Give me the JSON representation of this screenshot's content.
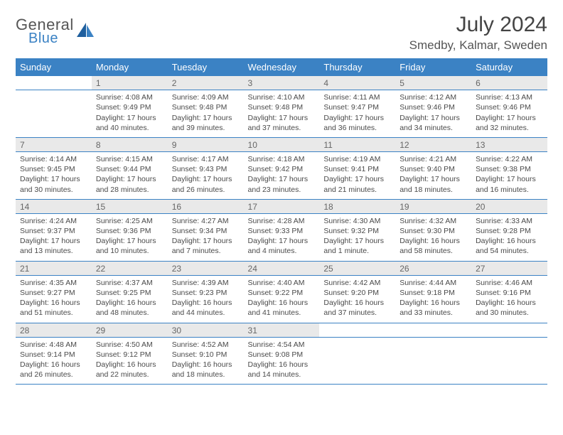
{
  "brand": {
    "word1": "General",
    "word2": "Blue",
    "accent_color": "#3b82c4"
  },
  "title": "July 2024",
  "location": "Smedby, Kalmar, Sweden",
  "colors": {
    "header_bg": "#3b82c4",
    "header_text": "#ffffff",
    "daynum_bg": "#e9e9e9",
    "daynum_text": "#666666",
    "body_text": "#4a4a4a",
    "divider": "#3b82c4",
    "page_bg": "#ffffff"
  },
  "day_names": [
    "Sunday",
    "Monday",
    "Tuesday",
    "Wednesday",
    "Thursday",
    "Friday",
    "Saturday"
  ],
  "weeks": [
    [
      null,
      {
        "n": "1",
        "sr": "Sunrise: 4:08 AM",
        "ss": "Sunset: 9:49 PM",
        "d1": "Daylight: 17 hours",
        "d2": "and 40 minutes."
      },
      {
        "n": "2",
        "sr": "Sunrise: 4:09 AM",
        "ss": "Sunset: 9:48 PM",
        "d1": "Daylight: 17 hours",
        "d2": "and 39 minutes."
      },
      {
        "n": "3",
        "sr": "Sunrise: 4:10 AM",
        "ss": "Sunset: 9:48 PM",
        "d1": "Daylight: 17 hours",
        "d2": "and 37 minutes."
      },
      {
        "n": "4",
        "sr": "Sunrise: 4:11 AM",
        "ss": "Sunset: 9:47 PM",
        "d1": "Daylight: 17 hours",
        "d2": "and 36 minutes."
      },
      {
        "n": "5",
        "sr": "Sunrise: 4:12 AM",
        "ss": "Sunset: 9:46 PM",
        "d1": "Daylight: 17 hours",
        "d2": "and 34 minutes."
      },
      {
        "n": "6",
        "sr": "Sunrise: 4:13 AM",
        "ss": "Sunset: 9:46 PM",
        "d1": "Daylight: 17 hours",
        "d2": "and 32 minutes."
      }
    ],
    [
      {
        "n": "7",
        "sr": "Sunrise: 4:14 AM",
        "ss": "Sunset: 9:45 PM",
        "d1": "Daylight: 17 hours",
        "d2": "and 30 minutes."
      },
      {
        "n": "8",
        "sr": "Sunrise: 4:15 AM",
        "ss": "Sunset: 9:44 PM",
        "d1": "Daylight: 17 hours",
        "d2": "and 28 minutes."
      },
      {
        "n": "9",
        "sr": "Sunrise: 4:17 AM",
        "ss": "Sunset: 9:43 PM",
        "d1": "Daylight: 17 hours",
        "d2": "and 26 minutes."
      },
      {
        "n": "10",
        "sr": "Sunrise: 4:18 AM",
        "ss": "Sunset: 9:42 PM",
        "d1": "Daylight: 17 hours",
        "d2": "and 23 minutes."
      },
      {
        "n": "11",
        "sr": "Sunrise: 4:19 AM",
        "ss": "Sunset: 9:41 PM",
        "d1": "Daylight: 17 hours",
        "d2": "and 21 minutes."
      },
      {
        "n": "12",
        "sr": "Sunrise: 4:21 AM",
        "ss": "Sunset: 9:40 PM",
        "d1": "Daylight: 17 hours",
        "d2": "and 18 minutes."
      },
      {
        "n": "13",
        "sr": "Sunrise: 4:22 AM",
        "ss": "Sunset: 9:38 PM",
        "d1": "Daylight: 17 hours",
        "d2": "and 16 minutes."
      }
    ],
    [
      {
        "n": "14",
        "sr": "Sunrise: 4:24 AM",
        "ss": "Sunset: 9:37 PM",
        "d1": "Daylight: 17 hours",
        "d2": "and 13 minutes."
      },
      {
        "n": "15",
        "sr": "Sunrise: 4:25 AM",
        "ss": "Sunset: 9:36 PM",
        "d1": "Daylight: 17 hours",
        "d2": "and 10 minutes."
      },
      {
        "n": "16",
        "sr": "Sunrise: 4:27 AM",
        "ss": "Sunset: 9:34 PM",
        "d1": "Daylight: 17 hours",
        "d2": "and 7 minutes."
      },
      {
        "n": "17",
        "sr": "Sunrise: 4:28 AM",
        "ss": "Sunset: 9:33 PM",
        "d1": "Daylight: 17 hours",
        "d2": "and 4 minutes."
      },
      {
        "n": "18",
        "sr": "Sunrise: 4:30 AM",
        "ss": "Sunset: 9:32 PM",
        "d1": "Daylight: 17 hours",
        "d2": "and 1 minute."
      },
      {
        "n": "19",
        "sr": "Sunrise: 4:32 AM",
        "ss": "Sunset: 9:30 PM",
        "d1": "Daylight: 16 hours",
        "d2": "and 58 minutes."
      },
      {
        "n": "20",
        "sr": "Sunrise: 4:33 AM",
        "ss": "Sunset: 9:28 PM",
        "d1": "Daylight: 16 hours",
        "d2": "and 54 minutes."
      }
    ],
    [
      {
        "n": "21",
        "sr": "Sunrise: 4:35 AM",
        "ss": "Sunset: 9:27 PM",
        "d1": "Daylight: 16 hours",
        "d2": "and 51 minutes."
      },
      {
        "n": "22",
        "sr": "Sunrise: 4:37 AM",
        "ss": "Sunset: 9:25 PM",
        "d1": "Daylight: 16 hours",
        "d2": "and 48 minutes."
      },
      {
        "n": "23",
        "sr": "Sunrise: 4:39 AM",
        "ss": "Sunset: 9:23 PM",
        "d1": "Daylight: 16 hours",
        "d2": "and 44 minutes."
      },
      {
        "n": "24",
        "sr": "Sunrise: 4:40 AM",
        "ss": "Sunset: 9:22 PM",
        "d1": "Daylight: 16 hours",
        "d2": "and 41 minutes."
      },
      {
        "n": "25",
        "sr": "Sunrise: 4:42 AM",
        "ss": "Sunset: 9:20 PM",
        "d1": "Daylight: 16 hours",
        "d2": "and 37 minutes."
      },
      {
        "n": "26",
        "sr": "Sunrise: 4:44 AM",
        "ss": "Sunset: 9:18 PM",
        "d1": "Daylight: 16 hours",
        "d2": "and 33 minutes."
      },
      {
        "n": "27",
        "sr": "Sunrise: 4:46 AM",
        "ss": "Sunset: 9:16 PM",
        "d1": "Daylight: 16 hours",
        "d2": "and 30 minutes."
      }
    ],
    [
      {
        "n": "28",
        "sr": "Sunrise: 4:48 AM",
        "ss": "Sunset: 9:14 PM",
        "d1": "Daylight: 16 hours",
        "d2": "and 26 minutes."
      },
      {
        "n": "29",
        "sr": "Sunrise: 4:50 AM",
        "ss": "Sunset: 9:12 PM",
        "d1": "Daylight: 16 hours",
        "d2": "and 22 minutes."
      },
      {
        "n": "30",
        "sr": "Sunrise: 4:52 AM",
        "ss": "Sunset: 9:10 PM",
        "d1": "Daylight: 16 hours",
        "d2": "and 18 minutes."
      },
      {
        "n": "31",
        "sr": "Sunrise: 4:54 AM",
        "ss": "Sunset: 9:08 PM",
        "d1": "Daylight: 16 hours",
        "d2": "and 14 minutes."
      },
      null,
      null,
      null
    ]
  ]
}
